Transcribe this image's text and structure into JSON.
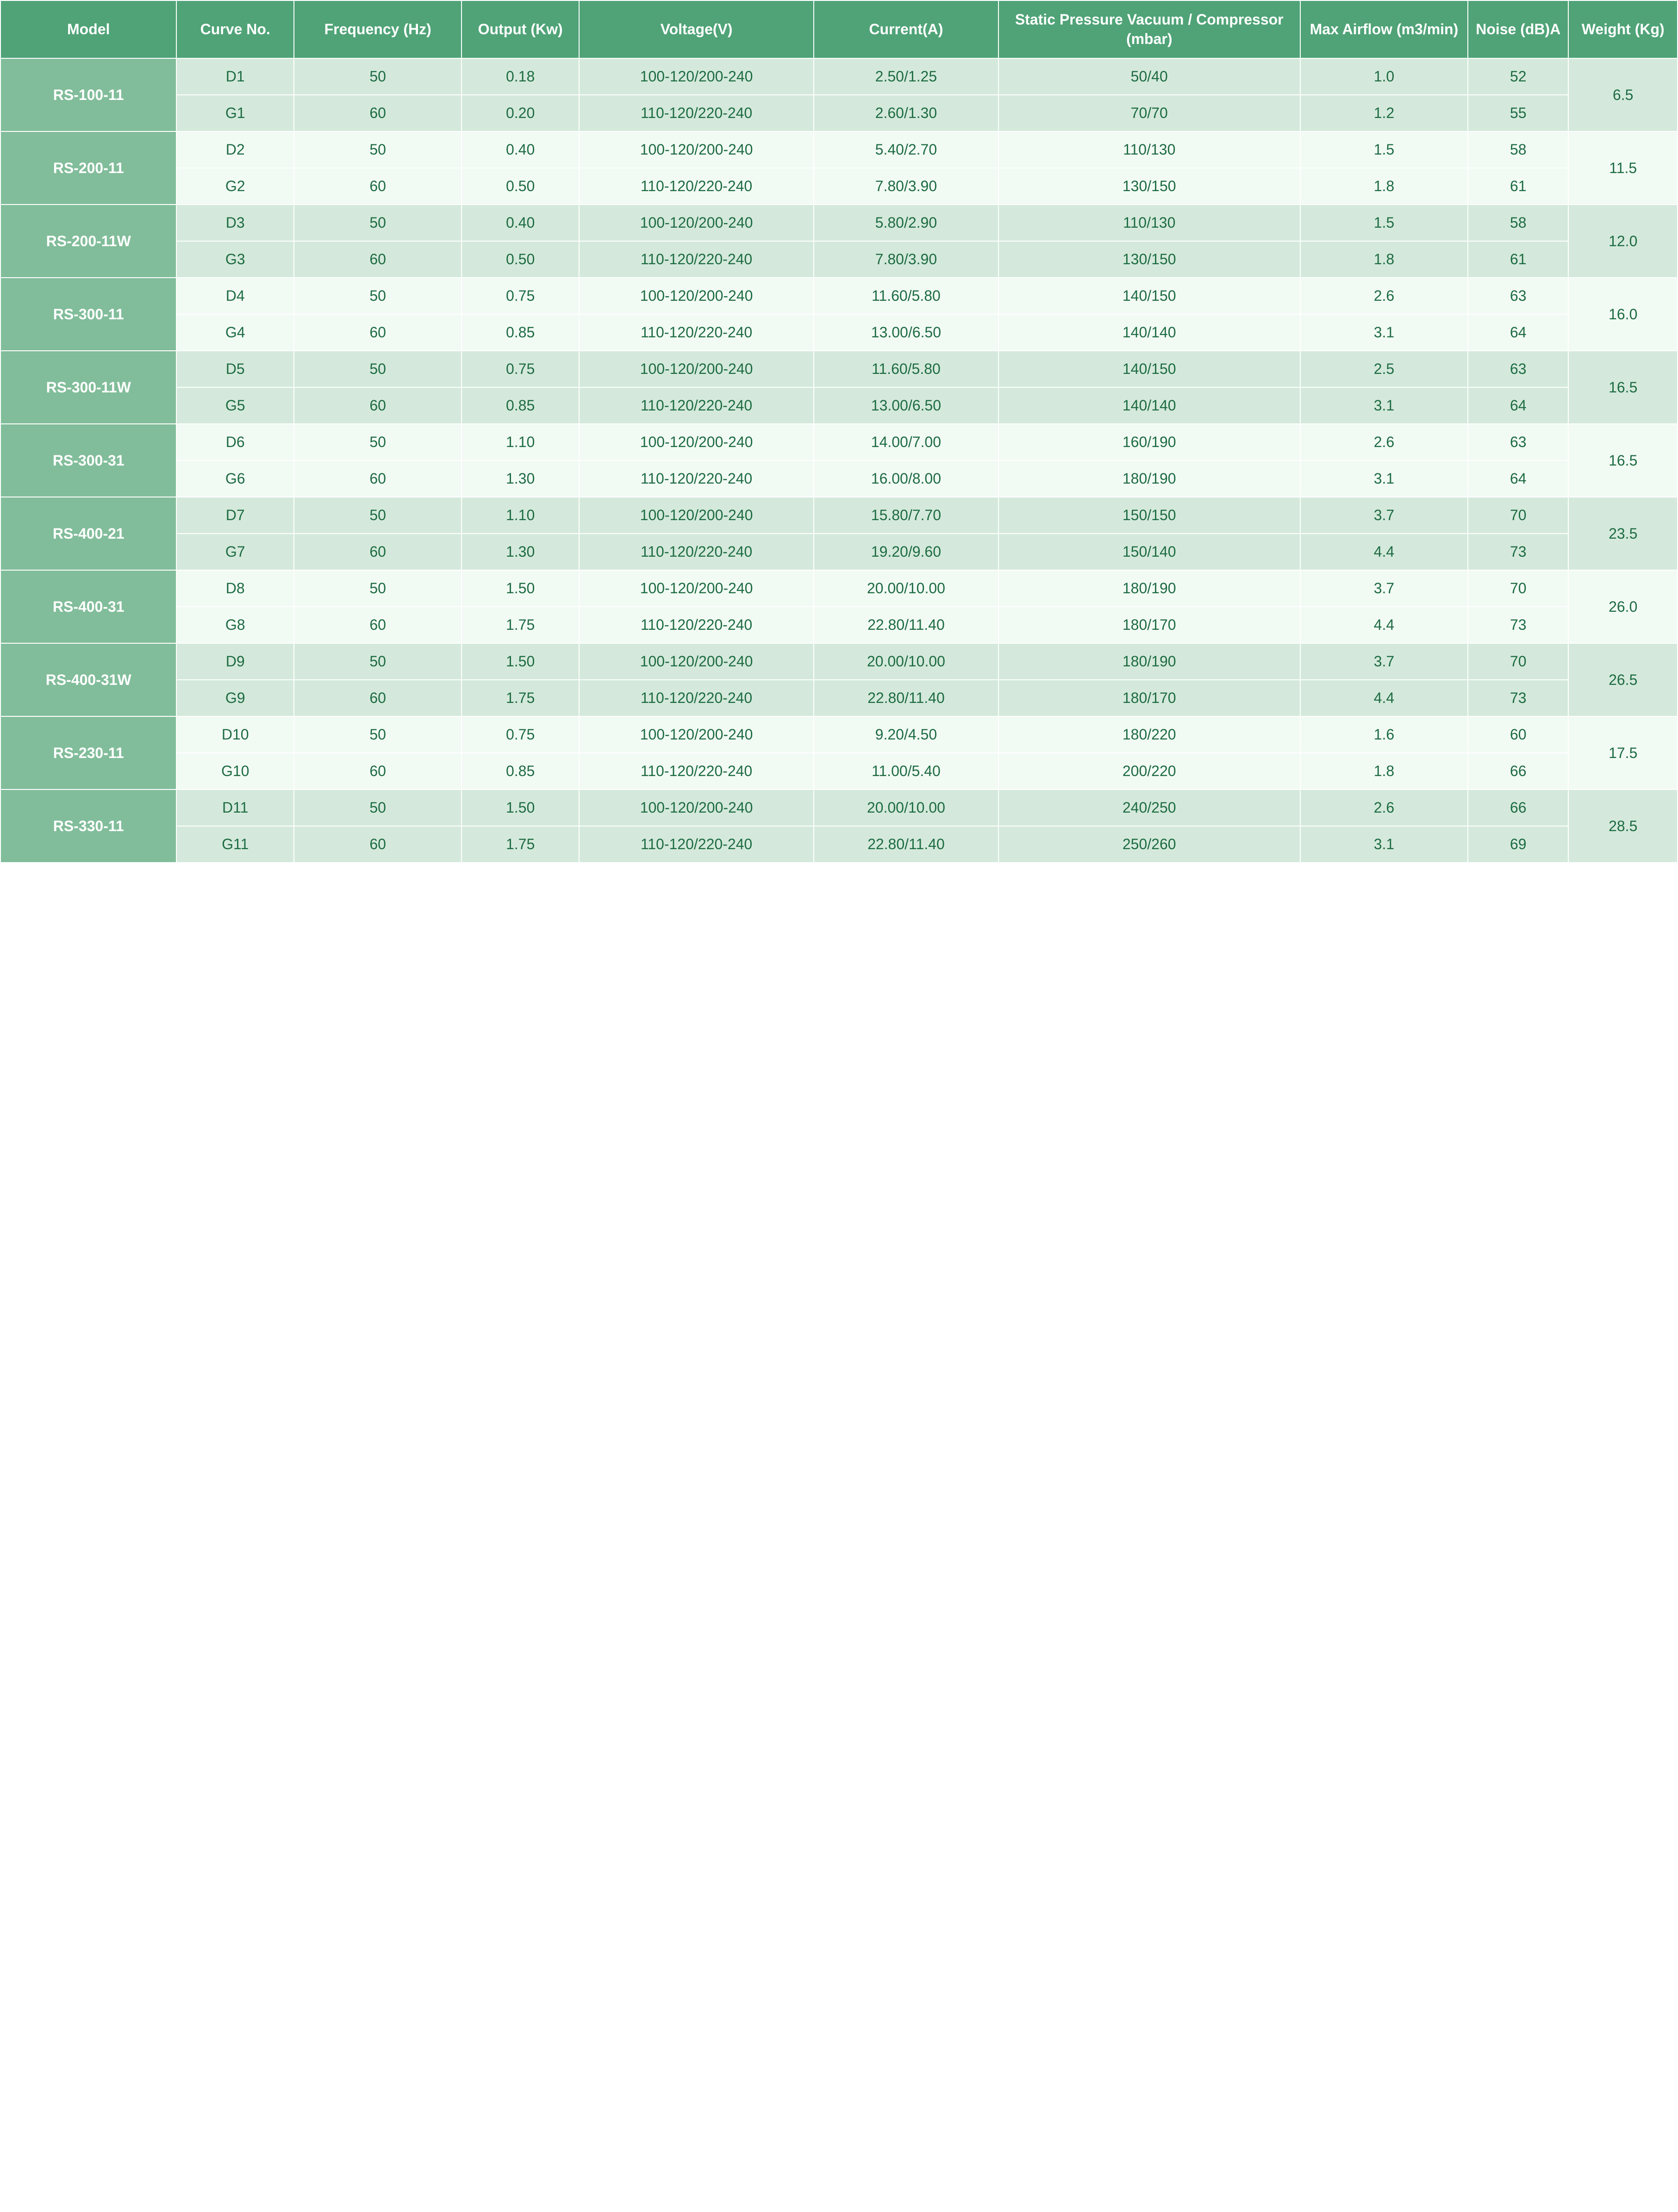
{
  "type": "table",
  "colors": {
    "header_bg": "#4fa377",
    "header_text": "#ffffff",
    "model_bg": "#81bd9a",
    "model_text": "#ffffff",
    "row_dark_bg": "#d4e9db",
    "row_light_bg": "#f2faf4",
    "cell_text": "#1d6b42",
    "border": "#ffffff"
  },
  "typography": {
    "font_family": "Arial",
    "header_fontsize": 32,
    "cell_fontsize": 32,
    "header_weight": "bold",
    "model_weight": "bold"
  },
  "columns": [
    {
      "key": "model",
      "label": "Model",
      "width": "10.5%"
    },
    {
      "key": "curve",
      "label": "Curve\nNo.",
      "width": "7%"
    },
    {
      "key": "freq",
      "label": "Frequency\n(Hz)",
      "width": "10%"
    },
    {
      "key": "output",
      "label": "Output\n(Kw)",
      "width": "7%"
    },
    {
      "key": "voltage",
      "label": "Voltage(V)",
      "width": "14%"
    },
    {
      "key": "current",
      "label": "Current(A)",
      "width": "11%"
    },
    {
      "key": "pressure",
      "label": "Static Pressure\nVacuum / Compressor\n(mbar)",
      "width": "18%"
    },
    {
      "key": "airflow",
      "label": "Max Airflow\n(m3/min)",
      "width": "10%"
    },
    {
      "key": "noise",
      "label": "Noise\n(dB)A",
      "width": "6%"
    },
    {
      "key": "weight",
      "label": "Weight\n(Kg)",
      "width": "6.5%"
    }
  ],
  "headers": {
    "model": "Model",
    "curve": "Curve No.",
    "freq": "Frequency (Hz)",
    "output": "Output (Kw)",
    "voltage": "Voltage(V)",
    "current": "Current(A)",
    "pressure": "Static Pressure Vacuum / Compressor (mbar)",
    "airflow": "Max Airflow (m3/min)",
    "noise": "Noise (dB)A",
    "weight": "Weight (Kg)"
  },
  "models": [
    {
      "name": "RS-100-11",
      "weight": "6.5",
      "shade": "dark",
      "rows": [
        {
          "curve": "D1",
          "freq": "50",
          "output": "0.18",
          "voltage": "100-120/200-240",
          "current": "2.50/1.25",
          "pressure": "50/40",
          "airflow": "1.0",
          "noise": "52"
        },
        {
          "curve": "G1",
          "freq": "60",
          "output": "0.20",
          "voltage": "110-120/220-240",
          "current": "2.60/1.30",
          "pressure": "70/70",
          "airflow": "1.2",
          "noise": "55"
        }
      ]
    },
    {
      "name": "RS-200-11",
      "weight": "11.5",
      "shade": "light",
      "rows": [
        {
          "curve": "D2",
          "freq": "50",
          "output": "0.40",
          "voltage": "100-120/200-240",
          "current": "5.40/2.70",
          "pressure": "110/130",
          "airflow": "1.5",
          "noise": "58"
        },
        {
          "curve": "G2",
          "freq": "60",
          "output": "0.50",
          "voltage": "110-120/220-240",
          "current": "7.80/3.90",
          "pressure": "130/150",
          "airflow": "1.8",
          "noise": "61"
        }
      ]
    },
    {
      "name": "RS-200-11W",
      "weight": "12.0",
      "shade": "dark",
      "rows": [
        {
          "curve": "D3",
          "freq": "50",
          "output": "0.40",
          "voltage": "100-120/200-240",
          "current": "5.80/2.90",
          "pressure": "110/130",
          "airflow": "1.5",
          "noise": "58"
        },
        {
          "curve": "G3",
          "freq": "60",
          "output": "0.50",
          "voltage": "110-120/220-240",
          "current": "7.80/3.90",
          "pressure": "130/150",
          "airflow": "1.8",
          "noise": "61"
        }
      ]
    },
    {
      "name": "RS-300-11",
      "weight": "16.0",
      "shade": "light",
      "rows": [
        {
          "curve": "D4",
          "freq": "50",
          "output": "0.75",
          "voltage": "100-120/200-240",
          "current": "11.60/5.80",
          "pressure": "140/150",
          "airflow": "2.6",
          "noise": "63"
        },
        {
          "curve": "G4",
          "freq": "60",
          "output": "0.85",
          "voltage": "110-120/220-240",
          "current": "13.00/6.50",
          "pressure": "140/140",
          "airflow": "3.1",
          "noise": "64"
        }
      ]
    },
    {
      "name": "RS-300-11W",
      "weight": "16.5",
      "shade": "dark",
      "rows": [
        {
          "curve": "D5",
          "freq": "50",
          "output": "0.75",
          "voltage": "100-120/200-240",
          "current": "11.60/5.80",
          "pressure": "140/150",
          "airflow": "2.5",
          "noise": "63"
        },
        {
          "curve": "G5",
          "freq": "60",
          "output": "0.85",
          "voltage": "110-120/220-240",
          "current": "13.00/6.50",
          "pressure": "140/140",
          "airflow": "3.1",
          "noise": "64"
        }
      ]
    },
    {
      "name": "RS-300-31",
      "weight": "16.5",
      "shade": "light",
      "rows": [
        {
          "curve": "D6",
          "freq": "50",
          "output": "1.10",
          "voltage": "100-120/200-240",
          "current": "14.00/7.00",
          "pressure": "160/190",
          "airflow": "2.6",
          "noise": "63"
        },
        {
          "curve": "G6",
          "freq": "60",
          "output": "1.30",
          "voltage": "110-120/220-240",
          "current": "16.00/8.00",
          "pressure": "180/190",
          "airflow": "3.1",
          "noise": "64"
        }
      ]
    },
    {
      "name": "RS-400-21",
      "weight": "23.5",
      "shade": "dark",
      "rows": [
        {
          "curve": "D7",
          "freq": "50",
          "output": "1.10",
          "voltage": "100-120/200-240",
          "current": "15.80/7.70",
          "pressure": "150/150",
          "airflow": "3.7",
          "noise": "70"
        },
        {
          "curve": "G7",
          "freq": "60",
          "output": "1.30",
          "voltage": "110-120/220-240",
          "current": "19.20/9.60",
          "pressure": "150/140",
          "airflow": "4.4",
          "noise": "73"
        }
      ]
    },
    {
      "name": "RS-400-31",
      "weight": "26.0",
      "shade": "light",
      "rows": [
        {
          "curve": "D8",
          "freq": "50",
          "output": "1.50",
          "voltage": "100-120/200-240",
          "current": "20.00/10.00",
          "pressure": "180/190",
          "airflow": "3.7",
          "noise": "70"
        },
        {
          "curve": "G8",
          "freq": "60",
          "output": "1.75",
          "voltage": "110-120/220-240",
          "current": "22.80/11.40",
          "pressure": "180/170",
          "airflow": "4.4",
          "noise": "73"
        }
      ]
    },
    {
      "name": "RS-400-31W",
      "weight": "26.5",
      "shade": "dark",
      "rows": [
        {
          "curve": "D9",
          "freq": "50",
          "output": "1.50",
          "voltage": "100-120/200-240",
          "current": "20.00/10.00",
          "pressure": "180/190",
          "airflow": "3.7",
          "noise": "70"
        },
        {
          "curve": "G9",
          "freq": "60",
          "output": "1.75",
          "voltage": "110-120/220-240",
          "current": "22.80/11.40",
          "pressure": "180/170",
          "airflow": "4.4",
          "noise": "73"
        }
      ]
    },
    {
      "name": "RS-230-11",
      "weight": "17.5",
      "shade": "light",
      "rows": [
        {
          "curve": "D10",
          "freq": "50",
          "output": "0.75",
          "voltage": "100-120/200-240",
          "current": "9.20/4.50",
          "pressure": "180/220",
          "airflow": "1.6",
          "noise": "60"
        },
        {
          "curve": "G10",
          "freq": "60",
          "output": "0.85",
          "voltage": "110-120/220-240",
          "current": "11.00/5.40",
          "pressure": "200/220",
          "airflow": "1.8",
          "noise": "66"
        }
      ]
    },
    {
      "name": "RS-330-11",
      "weight": "28.5",
      "shade": "dark",
      "rows": [
        {
          "curve": "D11",
          "freq": "50",
          "output": "1.50",
          "voltage": "100-120/200-240",
          "current": "20.00/10.00",
          "pressure": "240/250",
          "airflow": "2.6",
          "noise": "66"
        },
        {
          "curve": "G11",
          "freq": "60",
          "output": "1.75",
          "voltage": "110-120/220-240",
          "current": "22.80/11.40",
          "pressure": "250/260",
          "airflow": "3.1",
          "noise": "69"
        }
      ]
    }
  ]
}
